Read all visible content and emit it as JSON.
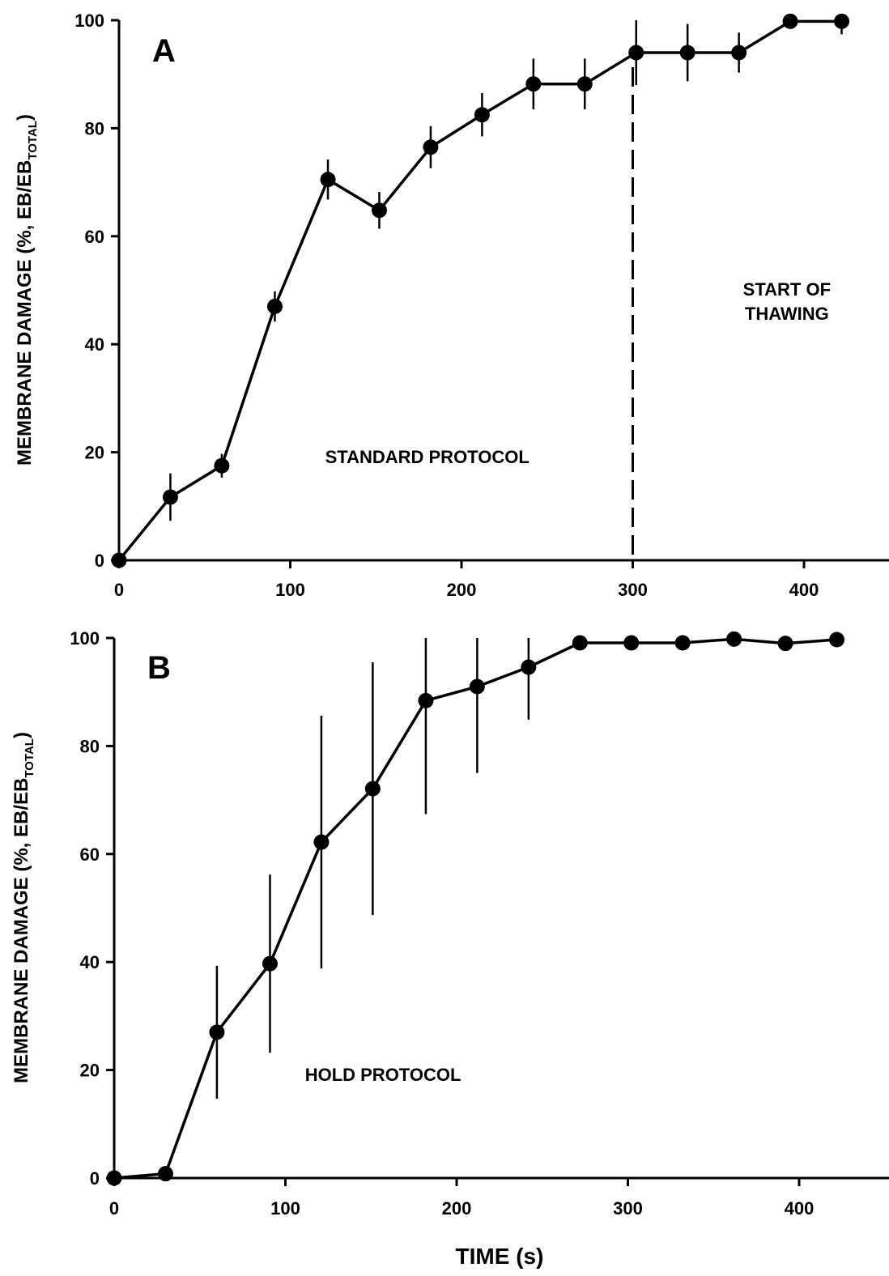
{
  "chart_data": [
    {
      "type": "line",
      "panel_label": "A",
      "ylabel_main": "MEMBRANE DAMAGE (%, EB/EB",
      "ylabel_sub": "TOTAL",
      "ylabel_close": ")",
      "xlabel": "",
      "xlim": [
        0,
        450
      ],
      "ylim": [
        0,
        100
      ],
      "xticks": [
        "0",
        "100",
        "200",
        "300",
        "400"
      ],
      "yticks": [
        "0",
        "20",
        "40",
        "60",
        "80",
        "100"
      ],
      "series": [
        {
          "x": [
            0,
            30,
            60,
            91,
            122,
            152,
            182,
            212,
            242,
            272,
            302,
            332,
            362,
            392,
            422
          ],
          "y": [
            0,
            11.7,
            17.5,
            47.0,
            70.5,
            64.8,
            76.5,
            82.5,
            88.2,
            88.2,
            94.0,
            94.0,
            94.0,
            99.8,
            99.8
          ],
          "err": [
            0,
            4.4,
            2.2,
            2.8,
            3.7,
            3.4,
            3.9,
            4.0,
            4.7,
            4.7,
            6.0,
            5.3,
            3.7,
            0.6,
            2.4
          ]
        }
      ],
      "annotations": [
        {
          "text": "STANDARD PROTOCOL",
          "x": 180,
          "y": 18
        },
        {
          "text": "START OF",
          "x": 390,
          "y": 49
        },
        {
          "text": "THAWING",
          "x": 390,
          "y": 44.5
        }
      ],
      "vline": {
        "x": 300,
        "style": "dashed"
      }
    },
    {
      "type": "line",
      "panel_label": "B",
      "ylabel_main": "MEMBRANE DAMAGE (%, EB/EB",
      "ylabel_sub": "TOTAL",
      "ylabel_close": ")",
      "xlabel": "TIME (s)",
      "xlim": [
        0,
        450
      ],
      "ylim": [
        0,
        100
      ],
      "xticks": [
        "0",
        "100",
        "200",
        "300",
        "400"
      ],
      "yticks": [
        "0",
        "20",
        "40",
        "60",
        "80",
        "100"
      ],
      "series": [
        {
          "x": [
            0,
            30,
            60,
            91,
            121,
            151,
            182,
            212,
            242,
            272,
            302,
            332,
            362,
            392,
            422
          ],
          "y": [
            0,
            0.8,
            27.0,
            39.7,
            62.2,
            72.1,
            88.4,
            91.0,
            94.6,
            99.1,
            99.1,
            99.1,
            99.8,
            99.0,
            99.7
          ],
          "err": [
            0,
            0,
            12.3,
            16.5,
            23.4,
            23.4,
            21.0,
            16.0,
            9.7,
            0.8,
            0.5,
            0.8,
            0.2,
            0.6,
            0.3
          ]
        }
      ],
      "annotations": [
        {
          "text": "HOLD PROTOCOL",
          "x": 157,
          "y": 18
        }
      ]
    }
  ]
}
